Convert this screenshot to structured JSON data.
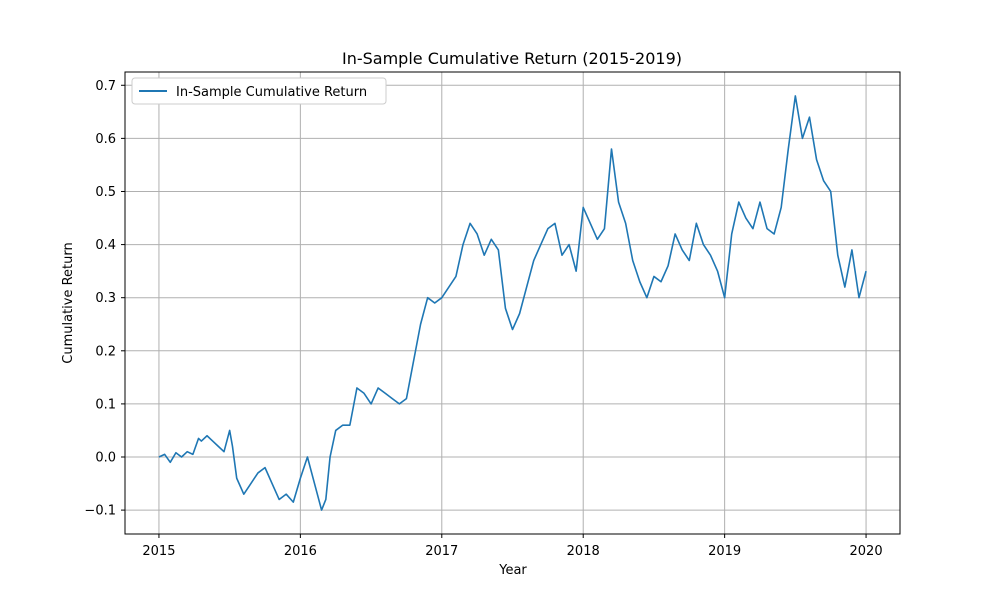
{
  "chart_data": {
    "type": "line",
    "title": "In-Sample Cumulative Return (2015-2019)",
    "xlabel": "Year",
    "ylabel": "Cumulative Return",
    "xlim": [
      2014.76,
      2020.24
    ],
    "ylim": [
      -0.145,
      0.725
    ],
    "x_ticks": [
      {
        "value": 2015,
        "label": "2015"
      },
      {
        "value": 2016,
        "label": "2016"
      },
      {
        "value": 2017,
        "label": "2017"
      },
      {
        "value": 2018,
        "label": "2018"
      },
      {
        "value": 2019,
        "label": "2019"
      },
      {
        "value": 2020,
        "label": "2020"
      }
    ],
    "y_ticks": [
      {
        "value": -0.1,
        "label": "−0.1"
      },
      {
        "value": 0.0,
        "label": "0.0"
      },
      {
        "value": 0.1,
        "label": "0.1"
      },
      {
        "value": 0.2,
        "label": "0.2"
      },
      {
        "value": 0.3,
        "label": "0.3"
      },
      {
        "value": 0.4,
        "label": "0.4"
      },
      {
        "value": 0.5,
        "label": "0.5"
      },
      {
        "value": 0.6,
        "label": "0.6"
      },
      {
        "value": 0.7,
        "label": "0.7"
      }
    ],
    "grid": true,
    "legend": {
      "position": "top-left"
    },
    "series": [
      {
        "name": "In-Sample Cumulative Return",
        "color": "#1f77b4",
        "x": [
          2015.0,
          2015.04,
          2015.08,
          2015.12,
          2015.16,
          2015.2,
          2015.24,
          2015.28,
          2015.3,
          2015.34,
          2015.38,
          2015.42,
          2015.46,
          2015.5,
          2015.52,
          2015.55,
          2015.6,
          2015.65,
          2015.7,
          2015.75,
          2015.8,
          2015.85,
          2015.9,
          2015.95,
          2016.0,
          2016.05,
          2016.1,
          2016.15,
          2016.18,
          2016.21,
          2016.25,
          2016.3,
          2016.35,
          2016.4,
          2016.45,
          2016.5,
          2016.55,
          2016.6,
          2016.65,
          2016.7,
          2016.75,
          2016.8,
          2016.85,
          2016.9,
          2016.95,
          2017.0,
          2017.05,
          2017.1,
          2017.15,
          2017.2,
          2017.25,
          2017.3,
          2017.35,
          2017.4,
          2017.45,
          2017.5,
          2017.55,
          2017.6,
          2017.65,
          2017.7,
          2017.75,
          2017.8,
          2017.85,
          2017.9,
          2017.95,
          2018.0,
          2018.05,
          2018.1,
          2018.15,
          2018.2,
          2018.25,
          2018.3,
          2018.35,
          2018.4,
          2018.45,
          2018.5,
          2018.55,
          2018.6,
          2018.65,
          2018.7,
          2018.75,
          2018.8,
          2018.85,
          2018.9,
          2018.95,
          2019.0,
          2019.05,
          2019.1,
          2019.15,
          2019.2,
          2019.25,
          2019.3,
          2019.35,
          2019.4,
          2019.45,
          2019.5,
          2019.55,
          2019.6,
          2019.65,
          2019.7,
          2019.75,
          2019.8,
          2019.85,
          2019.9,
          2019.95,
          2020.0
        ],
        "y": [
          0.0,
          0.005,
          -0.01,
          0.008,
          0.0,
          0.01,
          0.005,
          0.035,
          0.03,
          0.04,
          0.03,
          0.02,
          0.01,
          0.05,
          0.02,
          -0.04,
          -0.07,
          -0.05,
          -0.03,
          -0.02,
          -0.05,
          -0.08,
          -0.07,
          -0.085,
          -0.04,
          0.0,
          -0.05,
          -0.1,
          -0.08,
          0.0,
          0.05,
          0.06,
          0.06,
          0.13,
          0.12,
          0.1,
          0.13,
          0.12,
          0.11,
          0.1,
          0.11,
          0.18,
          0.25,
          0.3,
          0.29,
          0.3,
          0.32,
          0.34,
          0.4,
          0.44,
          0.42,
          0.38,
          0.41,
          0.39,
          0.28,
          0.24,
          0.27,
          0.32,
          0.37,
          0.4,
          0.43,
          0.44,
          0.38,
          0.4,
          0.35,
          0.47,
          0.44,
          0.41,
          0.43,
          0.58,
          0.48,
          0.44,
          0.37,
          0.33,
          0.3,
          0.34,
          0.33,
          0.36,
          0.42,
          0.39,
          0.37,
          0.44,
          0.4,
          0.38,
          0.35,
          0.3,
          0.42,
          0.48,
          0.45,
          0.43,
          0.48,
          0.43,
          0.42,
          0.47,
          0.58,
          0.68,
          0.6,
          0.64,
          0.56,
          0.52,
          0.5,
          0.38,
          0.32,
          0.39,
          0.3,
          0.35
        ]
      }
    ]
  }
}
